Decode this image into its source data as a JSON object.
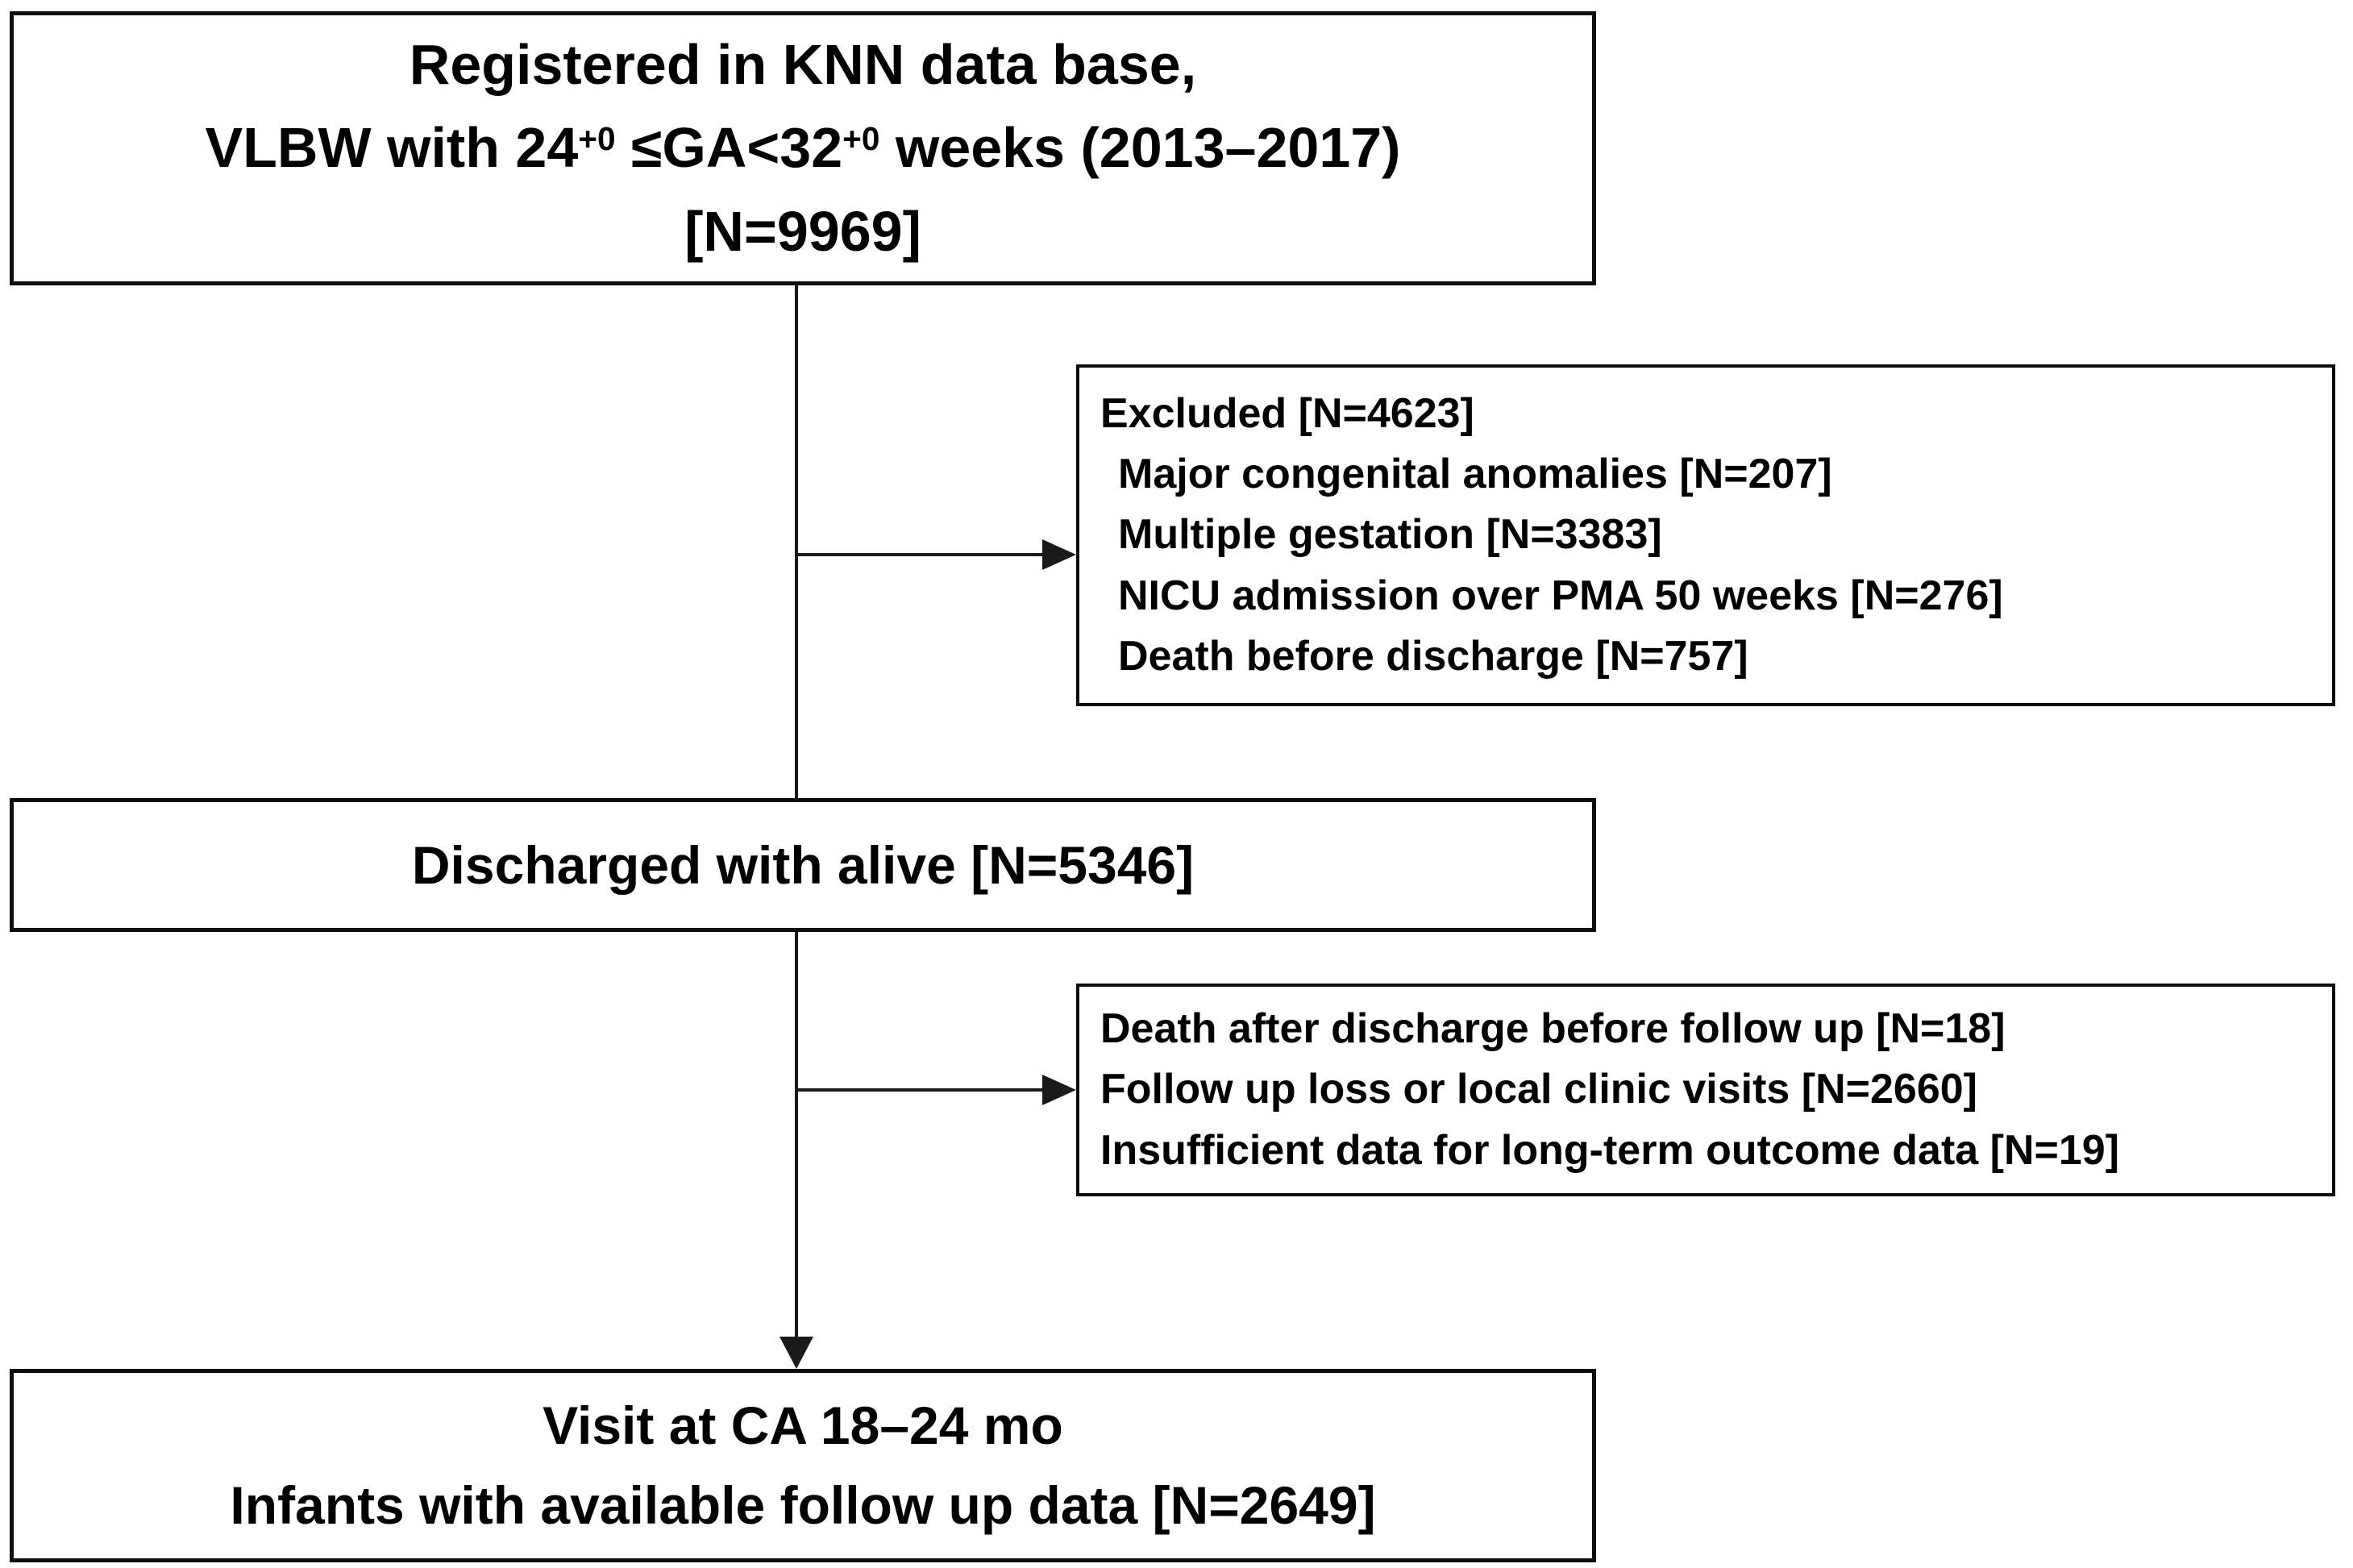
{
  "boxes": {
    "registered": {
      "line1": "Registered in KNN data base,",
      "line2_seg1": "VLBW with 24",
      "line2_sup1": "+0",
      "line2_seg2": " ≤GA<32",
      "line2_sup2": "+0",
      "line2_seg3": " weeks (2013–2017)",
      "line3": "[N=9969]"
    },
    "excluded": {
      "header": "Excluded [N=4623]",
      "items": [
        "Major congenital anomalies [N=207]",
        "Multiple gestation [N=3383]",
        "NICU admission over PMA 50 weeks [N=276]",
        "Death before discharge [N=757]"
      ]
    },
    "discharged": {
      "text": "Discharged with alive [N=5346]"
    },
    "followup_loss": {
      "items": [
        "Death after discharge before follow up [N=18]",
        "Follow up loss or local clinic visits [N=2660]",
        "Insufficient data for long-term outcome data [N=19]"
      ]
    },
    "visit": {
      "line1": "Visit at CA 18–24 mo",
      "line2": "Infants with available follow up data [N=2649]"
    }
  },
  "style": {
    "line_color": "#1a1a1a",
    "background": "#ffffff",
    "text_color": "#000000"
  }
}
